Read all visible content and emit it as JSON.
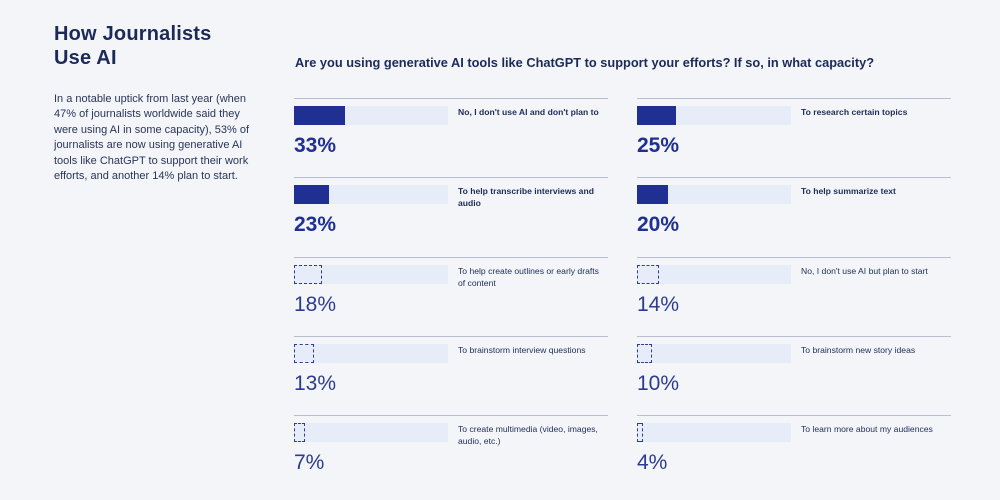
{
  "page": {
    "title_line_1": "How Journalists",
    "title_line_2": "Use AI",
    "description": "In a notable uptick from last year (when 47% of journalists worldwide said they were using AI in some capacity), 53% of journalists are now using generative AI tools like ChatGPT to support their work efforts, and another 14% plan to start."
  },
  "chart_data": {
    "type": "bar",
    "title": "Are you using generative AI tools like ChatGPT to support your efforts? If so, in what capacity?",
    "xlabel": "",
    "ylabel": "",
    "ylim": [
      0,
      100
    ],
    "categories": [
      "No, I don't use AI and don't plan to",
      "To research certain topics",
      "To help transcribe interviews and audio",
      "To help summarize text",
      "To help create outlines or early drafts of content",
      "No, I don't use AI but plan to start",
      "To brainstorm interview questions",
      "To brainstorm new story ideas",
      "To create multimedia (video, images, audio, etc.)",
      "To learn more about my audiences"
    ],
    "values": [
      33,
      25,
      23,
      20,
      18,
      14,
      13,
      10,
      7,
      4
    ],
    "display_values": [
      "33%",
      "25%",
      "23%",
      "20%",
      "18%",
      "14%",
      "13%",
      "10%",
      "7%",
      "4%"
    ],
    "highlighted": [
      true,
      true,
      true,
      true,
      false,
      false,
      false,
      false,
      false,
      false
    ],
    "layout": "two-column"
  },
  "colors": {
    "background": "#f3f5f8",
    "track": "#e6edf9",
    "accent": "#1f2f92",
    "text": "#1c2a5a",
    "rule": "#b8c0cf"
  }
}
